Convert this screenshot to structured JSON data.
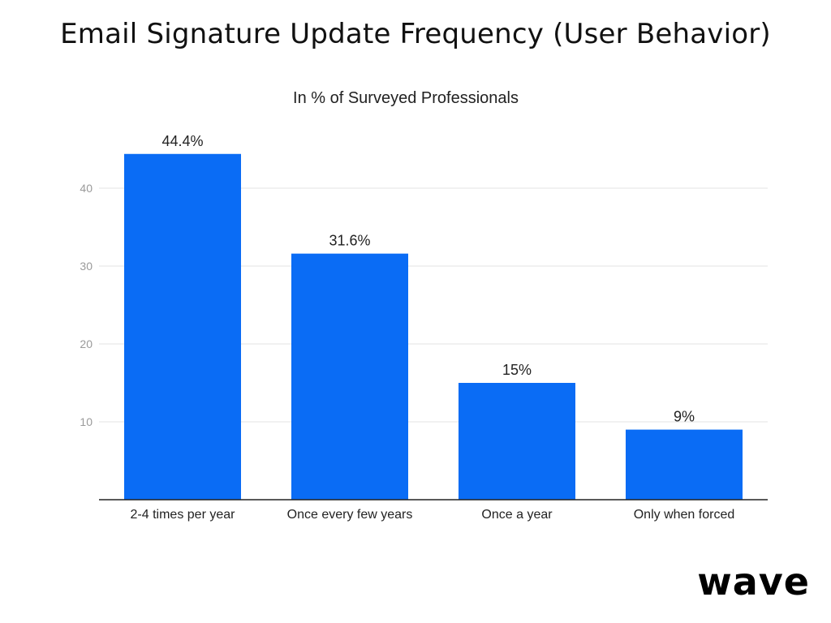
{
  "title": "Email Signature Update Frequency (User Behavior)",
  "logo_text": "wave",
  "colors": {
    "bar": "#0a6cf5",
    "grid": "#e3e3e3",
    "axis": "#222222",
    "tick_text": "#9a9a9a",
    "label_text": "#222222"
  },
  "chart_data": {
    "type": "bar",
    "subtitle": "In % of Surveyed Professionals",
    "categories": [
      "2-4 times per year",
      "Once every few years",
      "Once a year",
      "Only when forced"
    ],
    "values": [
      44.4,
      31.6,
      15,
      9
    ],
    "data_labels": [
      "44.4%",
      "31.6%",
      "15%",
      "9%"
    ],
    "yticks": [
      10,
      20,
      30,
      40
    ],
    "ylim": [
      0,
      50
    ],
    "xlabel": "",
    "ylabel": "",
    "grid": true,
    "legend": "none"
  }
}
